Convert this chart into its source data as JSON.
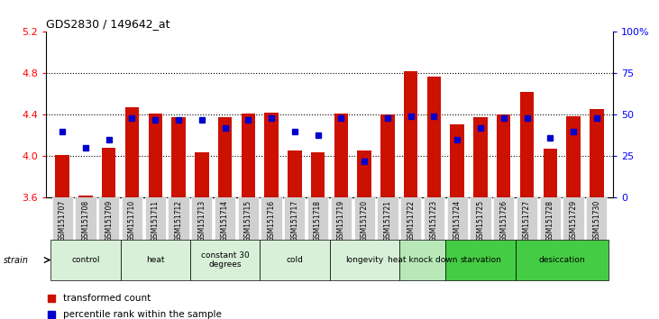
{
  "title": "GDS2830 / 149642_at",
  "samples": [
    "GSM151707",
    "GSM151708",
    "GSM151709",
    "GSM151710",
    "GSM151711",
    "GSM151712",
    "GSM151713",
    "GSM151714",
    "GSM151715",
    "GSM151716",
    "GSM151717",
    "GSM151718",
    "GSM151719",
    "GSM151720",
    "GSM151721",
    "GSM151722",
    "GSM151723",
    "GSM151724",
    "GSM151725",
    "GSM151726",
    "GSM151727",
    "GSM151728",
    "GSM151729",
    "GSM151730"
  ],
  "red_values": [
    4.01,
    3.62,
    4.08,
    4.47,
    4.41,
    4.38,
    4.04,
    4.38,
    4.41,
    4.42,
    4.06,
    4.04,
    4.41,
    4.06,
    4.4,
    4.82,
    4.77,
    4.31,
    4.38,
    4.4,
    4.62,
    4.07,
    4.39,
    4.46
  ],
  "blue_values_pct": [
    40,
    30,
    35,
    48,
    47,
    47,
    47,
    42,
    47,
    48,
    40,
    38,
    48,
    22,
    48,
    49,
    49,
    35,
    42,
    48,
    48,
    36,
    40,
    48
  ],
  "y_min": 3.6,
  "y_max": 5.2,
  "y_ticks": [
    3.6,
    4.0,
    4.4,
    4.8,
    5.2
  ],
  "y2_ticks": [
    0,
    25,
    50,
    75,
    100
  ],
  "bar_color": "#CC1100",
  "dot_color": "#0000CC",
  "groups": [
    {
      "label": "control",
      "start": 0,
      "end": 2,
      "color": "#d8f0d8"
    },
    {
      "label": "heat",
      "start": 3,
      "end": 5,
      "color": "#d8f0d8"
    },
    {
      "label": "constant 30\ndegrees",
      "start": 6,
      "end": 8,
      "color": "#d8f0d8"
    },
    {
      "label": "cold",
      "start": 9,
      "end": 11,
      "color": "#d8f0d8"
    },
    {
      "label": "longevity",
      "start": 12,
      "end": 14,
      "color": "#d8f0d8"
    },
    {
      "label": "heat knock down",
      "start": 15,
      "end": 16,
      "color": "#b8e8b8"
    },
    {
      "label": "starvation",
      "start": 17,
      "end": 19,
      "color": "#44cc44"
    },
    {
      "label": "desiccation",
      "start": 20,
      "end": 23,
      "color": "#44cc44"
    }
  ],
  "legend_items": [
    {
      "label": "transformed count",
      "color": "#CC1100"
    },
    {
      "label": "percentile rank within the sample",
      "color": "#0000CC"
    }
  ],
  "strain_label": "strain"
}
